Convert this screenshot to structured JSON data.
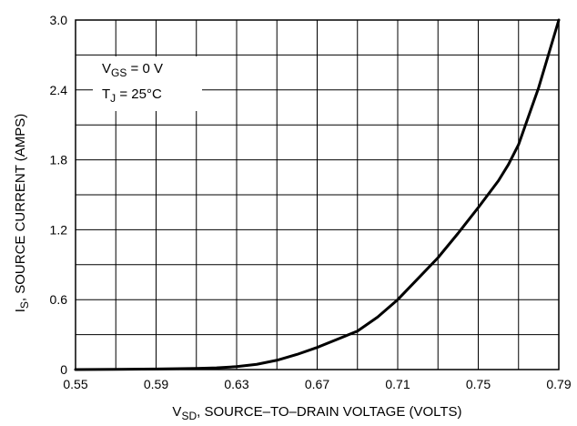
{
  "chart_data": {
    "type": "line",
    "title": "",
    "xlabel": {
      "main": "V",
      "sub": "SD",
      "rest": ", SOURCE–TO–DRAIN VOLTAGE (VOLTS)"
    },
    "ylabel": {
      "main": "I",
      "sub": "S",
      "rest": ", SOURCE CURRENT (AMPS)"
    },
    "xlim": [
      0.55,
      0.79
    ],
    "ylim": [
      0,
      3.0
    ],
    "x_ticks": [
      "0.55",
      "0.59",
      "0.63",
      "0.67",
      "0.71",
      "0.75",
      "0.79"
    ],
    "y_ticks": [
      "0",
      "0.6",
      "1.2",
      "1.8",
      "2.4",
      "3.0"
    ],
    "x_grid_step": 0.02,
    "y_grid_step": 0.3,
    "grid": true,
    "annotations": [
      {
        "main": "V",
        "sub": "GS",
        "rest": " = 0 V"
      },
      {
        "main": "T",
        "sub": "J",
        "rest": " = 25°C"
      }
    ],
    "series": [
      {
        "x": [
          0.55,
          0.57,
          0.59,
          0.61,
          0.62,
          0.63,
          0.64,
          0.65,
          0.66,
          0.67,
          0.68,
          0.69,
          0.7,
          0.71,
          0.72,
          0.73,
          0.74,
          0.75,
          0.76,
          0.765,
          0.77,
          0.78,
          0.79
        ],
        "y": [
          0.0,
          0.002,
          0.005,
          0.01,
          0.015,
          0.025,
          0.045,
          0.08,
          0.13,
          0.19,
          0.26,
          0.33,
          0.45,
          0.6,
          0.78,
          0.96,
          1.17,
          1.39,
          1.62,
          1.76,
          1.93,
          2.42,
          3.0
        ]
      }
    ]
  }
}
